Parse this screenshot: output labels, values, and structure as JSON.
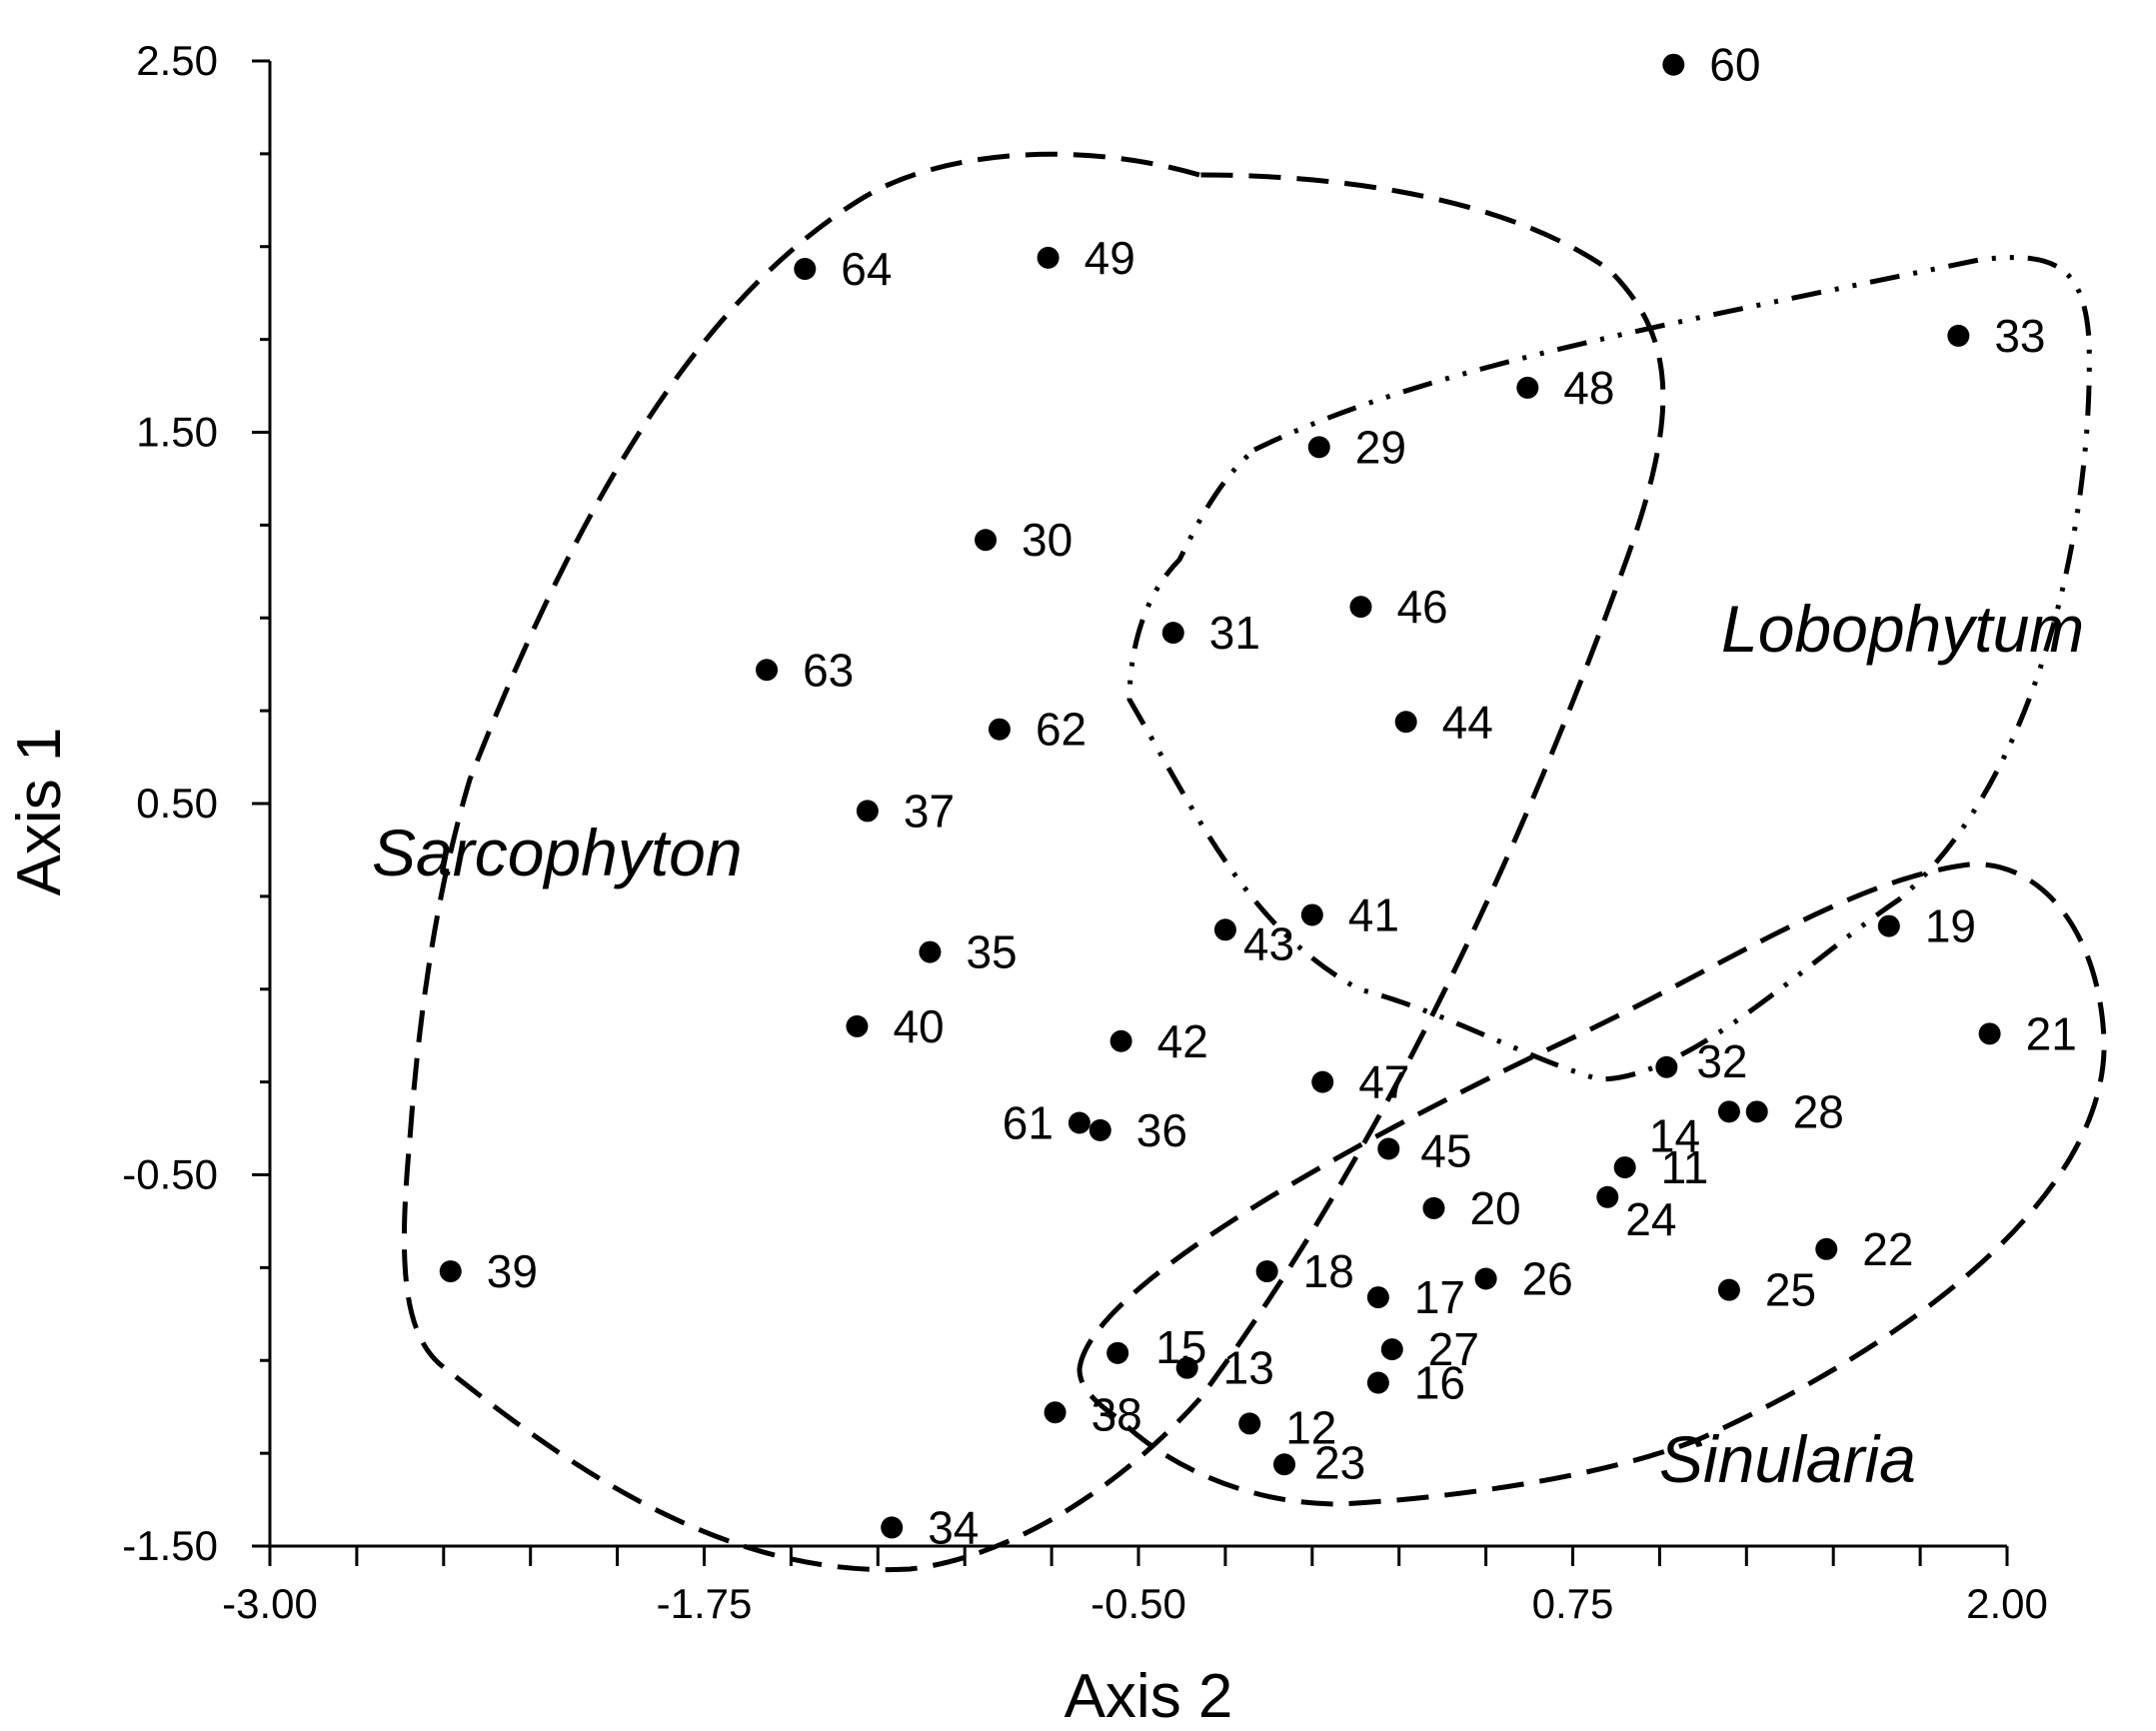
{
  "chart_data": {
    "type": "scatter",
    "title": "",
    "xlabel": "Axis 2",
    "ylabel": "Axis 1",
    "xlim": [
      -3.0,
      2.0
    ],
    "ylim": [
      -1.5,
      2.5
    ],
    "xticks": [
      "-3.00",
      "-1.75",
      "-0.50",
      "0.75",
      "2.00"
    ],
    "yticks": [
      "-1.50",
      "-0.50",
      "0.50",
      "1.50",
      "2.50"
    ],
    "points": [
      {
        "label": "60",
        "x": 1.04,
        "y": 2.49
      },
      {
        "label": "64",
        "x": -1.46,
        "y": 1.94
      },
      {
        "label": "49",
        "x": -0.76,
        "y": 1.97
      },
      {
        "label": "33",
        "x": 1.86,
        "y": 1.76
      },
      {
        "label": "48",
        "x": 0.62,
        "y": 1.62
      },
      {
        "label": "29",
        "x": 0.02,
        "y": 1.46
      },
      {
        "label": "30",
        "x": -0.94,
        "y": 1.21
      },
      {
        "label": "46",
        "x": 0.14,
        "y": 1.03
      },
      {
        "label": "31",
        "x": -0.4,
        "y": 0.96
      },
      {
        "label": "63",
        "x": -1.57,
        "y": 0.86
      },
      {
        "label": "44",
        "x": 0.27,
        "y": 0.72
      },
      {
        "label": "62",
        "x": -0.9,
        "y": 0.7
      },
      {
        "label": "37",
        "x": -1.28,
        "y": 0.48
      },
      {
        "label": "41",
        "x": 0.0,
        "y": 0.2
      },
      {
        "label": "43",
        "x": -0.25,
        "y": 0.16
      },
      {
        "label": "19",
        "x": 1.66,
        "y": 0.17
      },
      {
        "label": "35",
        "x": -1.1,
        "y": 0.1
      },
      {
        "label": "40",
        "x": -1.31,
        "y": -0.1
      },
      {
        "label": "21",
        "x": 1.95,
        "y": -0.12
      },
      {
        "label": "42",
        "x": -0.55,
        "y": -0.14
      },
      {
        "label": "32",
        "x": 1.02,
        "y": -0.21
      },
      {
        "label": "47",
        "x": 0.03,
        "y": -0.25
      },
      {
        "label": "14",
        "x": 1.2,
        "y": -0.33
      },
      {
        "label": "28",
        "x": 1.28,
        "y": -0.33
      },
      {
        "label": "61",
        "x": -0.67,
        "y": -0.36
      },
      {
        "label": "36",
        "x": -0.61,
        "y": -0.38
      },
      {
        "label": "45",
        "x": 0.22,
        "y": -0.43
      },
      {
        "label": "11",
        "x": 0.9,
        "y": -0.48
      },
      {
        "label": "24",
        "x": 0.85,
        "y": -0.56
      },
      {
        "label": "20",
        "x": 0.35,
        "y": -0.59
      },
      {
        "label": "22",
        "x": 1.48,
        "y": -0.7
      },
      {
        "label": "39",
        "x": -2.48,
        "y": -0.76
      },
      {
        "label": "18",
        "x": -0.13,
        "y": -0.76
      },
      {
        "label": "26",
        "x": 0.5,
        "y": -0.78
      },
      {
        "label": "25",
        "x": 1.2,
        "y": -0.81
      },
      {
        "label": "17",
        "x": 0.19,
        "y": -0.83
      },
      {
        "label": "15",
        "x": -0.56,
        "y": -0.98
      },
      {
        "label": "27",
        "x": 0.23,
        "y": -0.97
      },
      {
        "label": "13",
        "x": -0.36,
        "y": -1.02
      },
      {
        "label": "16",
        "x": 0.19,
        "y": -1.06
      },
      {
        "label": "38",
        "x": -0.74,
        "y": -1.14
      },
      {
        "label": "12",
        "x": -0.18,
        "y": -1.17
      },
      {
        "label": "23",
        "x": -0.08,
        "y": -1.28
      },
      {
        "label": "34",
        "x": -1.21,
        "y": -1.45
      }
    ],
    "groups": [
      {
        "name": "Sarcophyton",
        "line_style": "dashed"
      },
      {
        "name": "Lobophytum",
        "line_style": "dash-dot-dot"
      },
      {
        "name": "Sinularia",
        "line_style": "dashed"
      }
    ]
  }
}
